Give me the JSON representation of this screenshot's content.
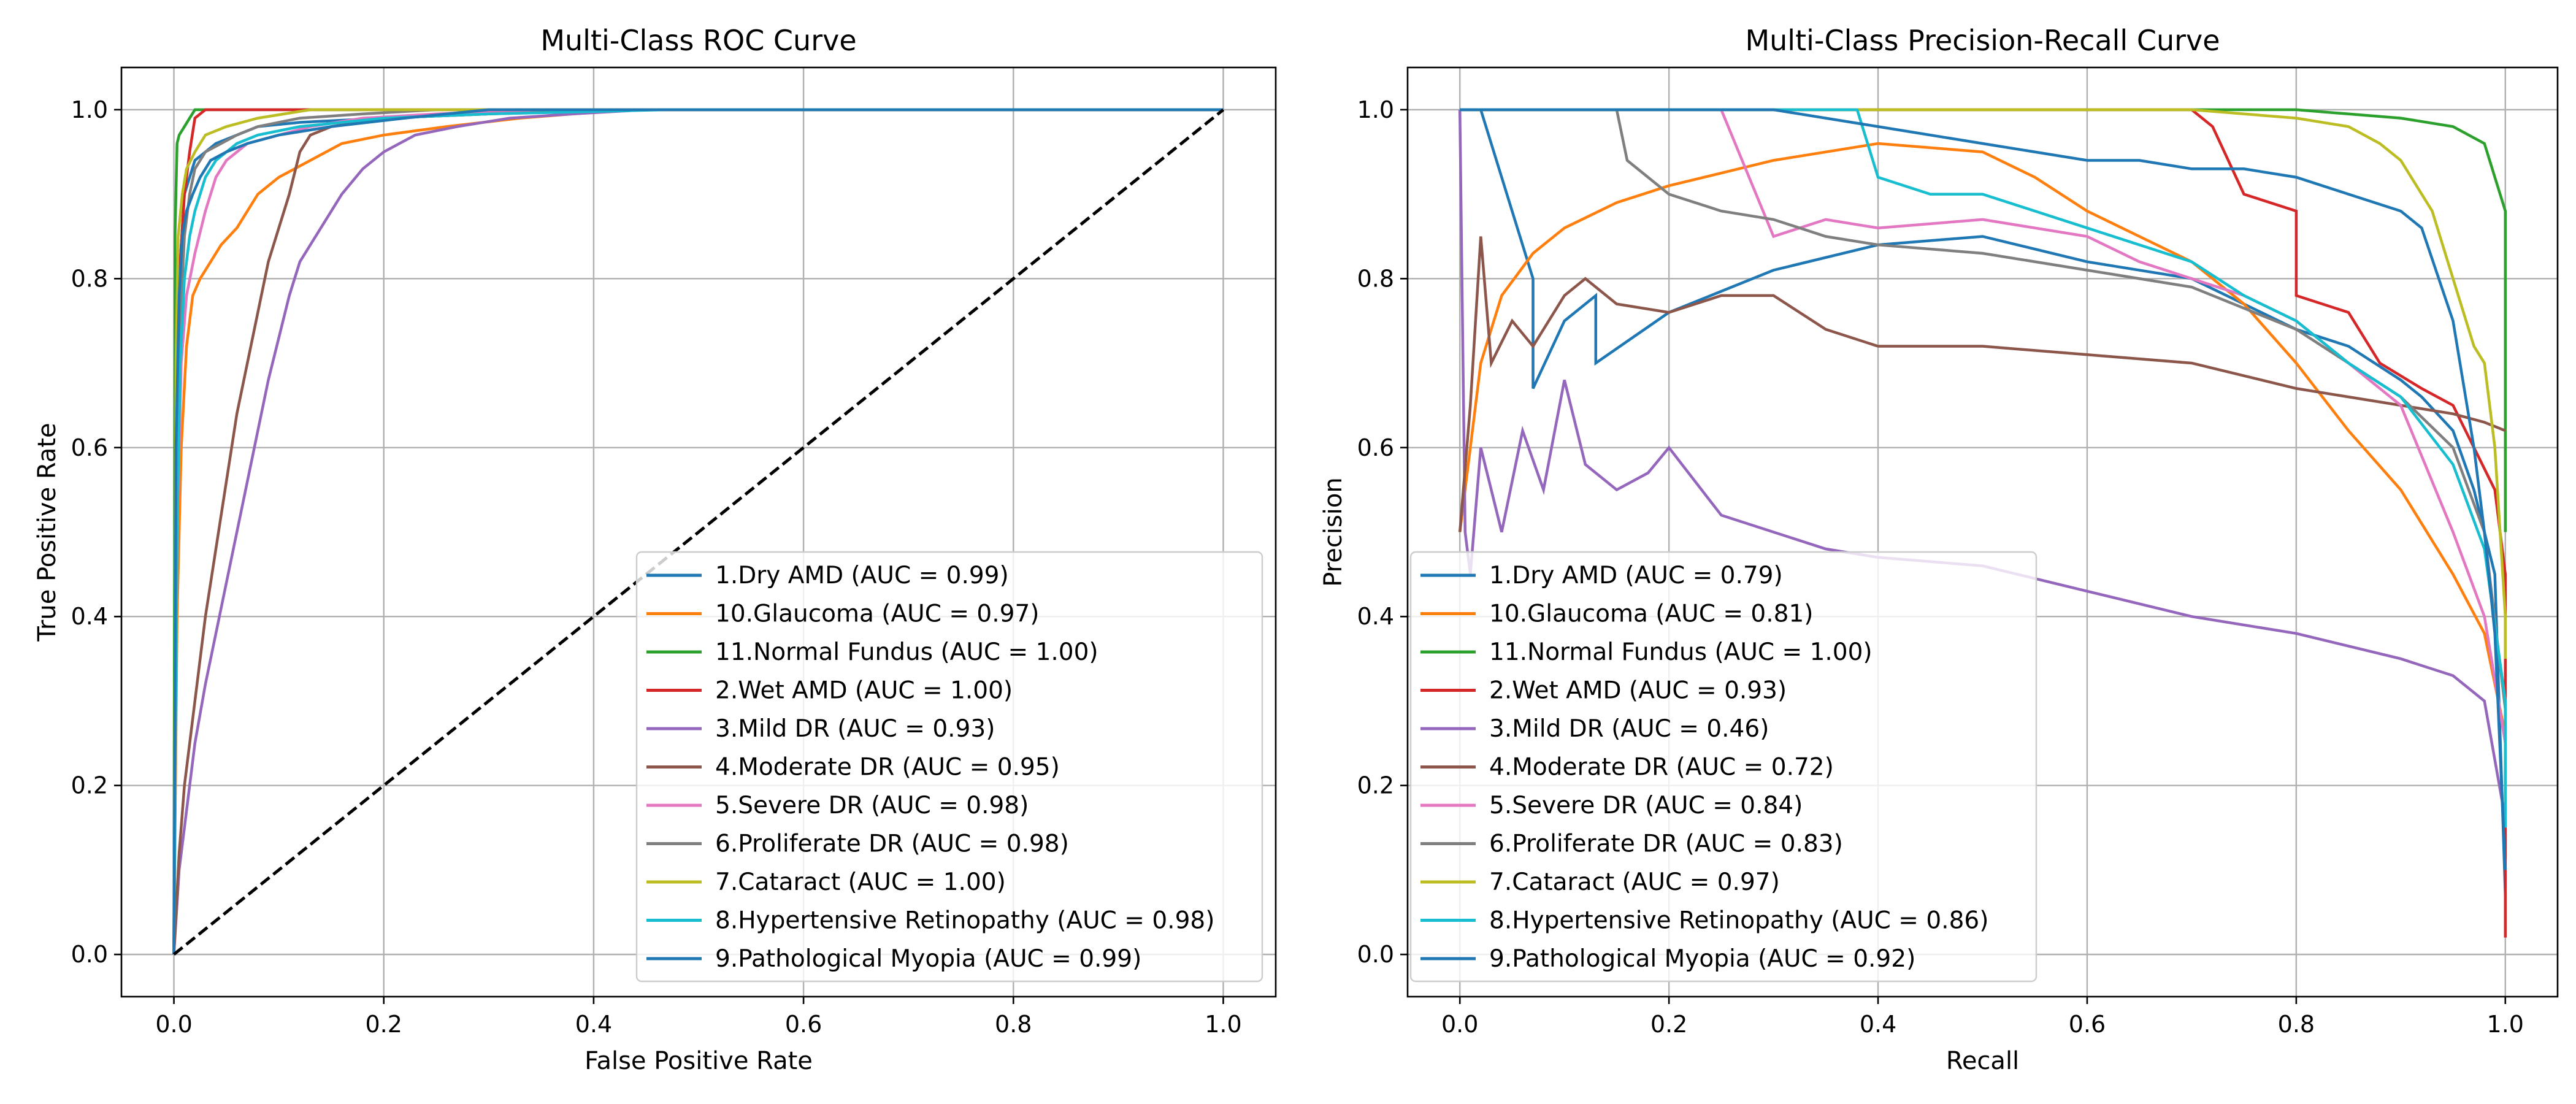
{
  "chart_data": [
    {
      "type": "line",
      "title": "Multi-Class ROC Curve",
      "xlabel": "False Positive Rate",
      "ylabel": "True Positive Rate",
      "xlim": [
        -0.05,
        1.05
      ],
      "ylim": [
        -0.05,
        1.05
      ],
      "xticks": [
        "0.0",
        "0.2",
        "0.4",
        "0.6",
        "0.8",
        "1.0"
      ],
      "yticks": [
        "0.0",
        "0.2",
        "0.4",
        "0.6",
        "0.8",
        "1.0"
      ],
      "grid": true,
      "legend_position": "lower-right",
      "series": [
        {
          "name": "1.Dry AMD (AUC = 0.99)",
          "color": "#1f77b4",
          "x": [
            0,
            0.002,
            0.005,
            0.01,
            0.015,
            0.02,
            0.03,
            0.04,
            0.06,
            0.08,
            0.12,
            0.2,
            0.3,
            0.4,
            1.0
          ],
          "y": [
            0,
            0.5,
            0.8,
            0.9,
            0.92,
            0.94,
            0.95,
            0.96,
            0.97,
            0.98,
            0.985,
            0.99,
            0.995,
            1.0,
            1.0
          ]
        },
        {
          "name": "10.Glaucoma (AUC = 0.97)",
          "color": "#ff7f0e",
          "x": [
            0,
            0.003,
            0.007,
            0.012,
            0.018,
            0.025,
            0.035,
            0.045,
            0.06,
            0.08,
            0.1,
            0.13,
            0.16,
            0.2,
            0.26,
            0.33,
            0.43,
            1.0
          ],
          "y": [
            0,
            0.4,
            0.6,
            0.72,
            0.78,
            0.8,
            0.82,
            0.84,
            0.86,
            0.9,
            0.92,
            0.94,
            0.96,
            0.97,
            0.98,
            0.99,
            1.0,
            1.0
          ]
        },
        {
          "name": "11.Normal Fundus (AUC = 1.00)",
          "color": "#2ca02c",
          "x": [
            0,
            0.001,
            0.003,
            0.005,
            0.01,
            0.015,
            0.02,
            1.0
          ],
          "y": [
            0,
            0.85,
            0.96,
            0.97,
            0.98,
            0.99,
            1.0,
            1.0
          ]
        },
        {
          "name": "2.Wet AMD (AUC = 1.00)",
          "color": "#d62728",
          "x": [
            0,
            0.002,
            0.005,
            0.01,
            0.015,
            0.02,
            0.03,
            1.0
          ],
          "y": [
            0,
            0.6,
            0.8,
            0.9,
            0.95,
            0.99,
            1.0,
            1.0
          ]
        },
        {
          "name": "3.Mild DR (AUC = 0.93)",
          "color": "#9467bd",
          "x": [
            0,
            0.005,
            0.01,
            0.02,
            0.03,
            0.04,
            0.05,
            0.06,
            0.07,
            0.08,
            0.09,
            0.1,
            0.11,
            0.12,
            0.14,
            0.16,
            0.18,
            0.2,
            0.23,
            0.27,
            0.32,
            0.38,
            0.45,
            1.0
          ],
          "y": [
            0,
            0.1,
            0.15,
            0.25,
            0.32,
            0.38,
            0.44,
            0.5,
            0.56,
            0.62,
            0.68,
            0.73,
            0.78,
            0.82,
            0.86,
            0.9,
            0.93,
            0.95,
            0.97,
            0.98,
            0.99,
            0.995,
            1.0,
            1.0
          ]
        },
        {
          "name": "4.Moderate DR (AUC = 0.95)",
          "color": "#8c564b",
          "x": [
            0,
            0.005,
            0.01,
            0.02,
            0.03,
            0.04,
            0.05,
            0.06,
            0.07,
            0.08,
            0.09,
            0.1,
            0.11,
            0.12,
            0.13,
            0.15,
            0.2,
            0.3,
            0.45,
            1.0
          ],
          "y": [
            0,
            0.12,
            0.2,
            0.3,
            0.4,
            0.48,
            0.56,
            0.64,
            0.7,
            0.76,
            0.82,
            0.86,
            0.9,
            0.95,
            0.97,
            0.98,
            0.99,
            0.995,
            1.0,
            1.0
          ]
        },
        {
          "name": "5.Severe DR (AUC = 0.98)",
          "color": "#e377c2",
          "x": [
            0,
            0.003,
            0.007,
            0.012,
            0.02,
            0.03,
            0.04,
            0.05,
            0.07,
            0.1,
            0.13,
            0.18,
            0.25,
            0.35,
            1.0
          ],
          "y": [
            0,
            0.5,
            0.7,
            0.78,
            0.83,
            0.88,
            0.92,
            0.94,
            0.96,
            0.97,
            0.98,
            0.99,
            0.995,
            1.0,
            1.0
          ]
        },
        {
          "name": "6.Proliferate DR (AUC = 0.98)",
          "color": "#7f7f7f",
          "x": [
            0,
            0.003,
            0.006,
            0.01,
            0.015,
            0.02,
            0.03,
            0.045,
            0.06,
            0.08,
            0.12,
            0.18,
            0.25,
            1.0
          ],
          "y": [
            0,
            0.55,
            0.75,
            0.85,
            0.9,
            0.93,
            0.95,
            0.96,
            0.97,
            0.98,
            0.99,
            0.995,
            1.0,
            1.0
          ]
        },
        {
          "name": "7.Cataract (AUC = 1.00)",
          "color": "#bcbd22",
          "x": [
            0,
            0.002,
            0.004,
            0.008,
            0.012,
            0.02,
            0.03,
            0.05,
            0.08,
            0.13,
            1.0
          ],
          "y": [
            0,
            0.7,
            0.85,
            0.9,
            0.93,
            0.95,
            0.97,
            0.98,
            0.99,
            1.0,
            1.0
          ]
        },
        {
          "name": "8.Hypertensive Retinopathy (AUC = 0.98)",
          "color": "#17becf",
          "x": [
            0,
            0.003,
            0.006,
            0.01,
            0.015,
            0.02,
            0.03,
            0.04,
            0.06,
            0.08,
            0.12,
            0.2,
            0.3,
            0.47,
            1.0
          ],
          "y": [
            0,
            0.5,
            0.7,
            0.8,
            0.85,
            0.88,
            0.92,
            0.94,
            0.96,
            0.97,
            0.98,
            0.99,
            0.995,
            1.0,
            1.0
          ]
        },
        {
          "name": "9.Pathological Myopia (AUC = 0.99)",
          "color": "#1f77b4",
          "x": [
            0,
            0.002,
            0.005,
            0.008,
            0.012,
            0.018,
            0.025,
            0.035,
            0.05,
            0.07,
            0.1,
            0.15,
            0.22,
            0.3,
            1.0
          ],
          "y": [
            0,
            0.6,
            0.78,
            0.85,
            0.88,
            0.9,
            0.92,
            0.94,
            0.95,
            0.96,
            0.97,
            0.98,
            0.99,
            1.0,
            1.0
          ]
        },
        {
          "name": "",
          "color": "#000000",
          "dashed": true,
          "x": [
            0,
            1
          ],
          "y": [
            0,
            1
          ]
        }
      ]
    },
    {
      "type": "line",
      "title": "Multi-Class Precision-Recall Curve",
      "xlabel": "Recall",
      "ylabel": "Precision",
      "xlim": [
        -0.05,
        1.05
      ],
      "ylim": [
        -0.05,
        1.05
      ],
      "xticks": [
        "0.0",
        "0.2",
        "0.4",
        "0.6",
        "0.8",
        "1.0"
      ],
      "yticks": [
        "0.0",
        "0.2",
        "0.4",
        "0.6",
        "0.8",
        "1.0"
      ],
      "grid": true,
      "legend_position": "lower-left",
      "series": [
        {
          "name": "1.Dry AMD (AUC = 0.79)",
          "color": "#1f77b4",
          "x": [
            0,
            0.02,
            0.07,
            0.07,
            0.1,
            0.13,
            0.13,
            0.2,
            0.3,
            0.4,
            0.5,
            0.6,
            0.7,
            0.8,
            0.85,
            0.9,
            0.92,
            0.95,
            0.97,
            0.99,
            1.0
          ],
          "y": [
            1.0,
            1.0,
            0.8,
            0.67,
            0.75,
            0.78,
            0.7,
            0.76,
            0.81,
            0.84,
            0.85,
            0.82,
            0.8,
            0.74,
            0.72,
            0.68,
            0.66,
            0.62,
            0.55,
            0.45,
            0.07
          ]
        },
        {
          "name": "10.Glaucoma (AUC = 0.81)",
          "color": "#ff7f0e",
          "x": [
            0,
            0.01,
            0.02,
            0.04,
            0.07,
            0.1,
            0.15,
            0.2,
            0.3,
            0.4,
            0.5,
            0.55,
            0.6,
            0.65,
            0.7,
            0.75,
            0.8,
            0.85,
            0.9,
            0.95,
            0.98,
            1.0
          ],
          "y": [
            0.5,
            0.6,
            0.7,
            0.78,
            0.83,
            0.86,
            0.89,
            0.91,
            0.94,
            0.96,
            0.95,
            0.92,
            0.88,
            0.85,
            0.82,
            0.77,
            0.7,
            0.62,
            0.55,
            0.45,
            0.38,
            0.26
          ]
        },
        {
          "name": "11.Normal Fundus (AUC = 1.00)",
          "color": "#2ca02c",
          "x": [
            0,
            0.2,
            0.4,
            0.6,
            0.8,
            0.85,
            0.9,
            0.95,
            0.98,
            0.99,
            1.0,
            1.0
          ],
          "y": [
            1.0,
            1.0,
            1.0,
            1.0,
            1.0,
            0.995,
            0.99,
            0.98,
            0.96,
            0.92,
            0.88,
            0.5
          ]
        },
        {
          "name": "2.Wet AMD (AUC = 0.93)",
          "color": "#d62728",
          "x": [
            0,
            0.3,
            0.5,
            0.7,
            0.72,
            0.75,
            0.8,
            0.8,
            0.85,
            0.88,
            0.92,
            0.95,
            0.97,
            0.99,
            1.0,
            1.0
          ],
          "y": [
            1.0,
            1.0,
            1.0,
            1.0,
            0.98,
            0.9,
            0.88,
            0.78,
            0.76,
            0.7,
            0.67,
            0.65,
            0.6,
            0.55,
            0.45,
            0.02
          ]
        },
        {
          "name": "3.Mild DR (AUC = 0.46)",
          "color": "#9467bd",
          "x": [
            0,
            0.005,
            0.01,
            0.02,
            0.03,
            0.04,
            0.06,
            0.08,
            0.1,
            0.12,
            0.15,
            0.18,
            0.2,
            0.25,
            0.3,
            0.35,
            0.4,
            0.5,
            0.6,
            0.7,
            0.8,
            0.9,
            0.95,
            0.98,
            1.0
          ],
          "y": [
            1.0,
            0.5,
            0.45,
            0.6,
            0.55,
            0.5,
            0.62,
            0.55,
            0.68,
            0.58,
            0.55,
            0.57,
            0.6,
            0.52,
            0.5,
            0.48,
            0.47,
            0.46,
            0.43,
            0.4,
            0.38,
            0.35,
            0.33,
            0.3,
            0.16
          ]
        },
        {
          "name": "4.Moderate DR (AUC = 0.72)",
          "color": "#8c564b",
          "x": [
            0,
            0.01,
            0.02,
            0.03,
            0.05,
            0.07,
            0.1,
            0.12,
            0.15,
            0.2,
            0.25,
            0.3,
            0.35,
            0.4,
            0.5,
            0.6,
            0.7,
            0.8,
            0.9,
            0.95,
            0.98,
            1.0
          ],
          "y": [
            0.5,
            0.65,
            0.85,
            0.7,
            0.75,
            0.72,
            0.78,
            0.8,
            0.77,
            0.76,
            0.78,
            0.78,
            0.74,
            0.72,
            0.72,
            0.71,
            0.7,
            0.67,
            0.65,
            0.64,
            0.63,
            0.62
          ]
        },
        {
          "name": "5.Severe DR (AUC = 0.84)",
          "color": "#e377c2",
          "x": [
            0,
            0.25,
            0.3,
            0.35,
            0.4,
            0.5,
            0.6,
            0.65,
            0.7,
            0.75,
            0.8,
            0.85,
            0.9,
            0.95,
            0.98,
            1.0
          ],
          "y": [
            1.0,
            1.0,
            0.85,
            0.87,
            0.86,
            0.87,
            0.85,
            0.82,
            0.8,
            0.78,
            0.75,
            0.7,
            0.65,
            0.5,
            0.4,
            0.25
          ]
        },
        {
          "name": "6.Proliferate DR (AUC = 0.83)",
          "color": "#7f7f7f",
          "x": [
            0,
            0.15,
            0.16,
            0.2,
            0.25,
            0.3,
            0.35,
            0.4,
            0.5,
            0.6,
            0.7,
            0.8,
            0.85,
            0.9,
            0.95,
            0.98,
            1.0
          ],
          "y": [
            1.0,
            1.0,
            0.94,
            0.9,
            0.88,
            0.87,
            0.85,
            0.84,
            0.83,
            0.81,
            0.79,
            0.74,
            0.7,
            0.66,
            0.6,
            0.5,
            0.29
          ]
        },
        {
          "name": "7.Cataract (AUC = 0.97)",
          "color": "#bcbd22",
          "x": [
            0,
            0.3,
            0.5,
            0.7,
            0.8,
            0.85,
            0.88,
            0.9,
            0.93,
            0.95,
            0.97,
            0.98,
            0.99,
            1.0,
            1.0
          ],
          "y": [
            1.0,
            1.0,
            1.0,
            1.0,
            0.99,
            0.98,
            0.96,
            0.94,
            0.88,
            0.8,
            0.72,
            0.7,
            0.6,
            0.4,
            0.35
          ]
        },
        {
          "name": "8.Hypertensive Retinopathy (AUC = 0.86)",
          "color": "#17becf",
          "x": [
            0,
            0.3,
            0.38,
            0.4,
            0.45,
            0.5,
            0.55,
            0.6,
            0.7,
            0.75,
            0.8,
            0.85,
            0.9,
            0.95,
            0.98,
            1.0,
            1.0
          ],
          "y": [
            1.0,
            1.0,
            1.0,
            0.92,
            0.9,
            0.9,
            0.88,
            0.86,
            0.82,
            0.78,
            0.75,
            0.7,
            0.66,
            0.58,
            0.48,
            0.3,
            0.15
          ]
        },
        {
          "name": "9.Pathological Myopia (AUC = 0.92)",
          "color": "#1f77b4",
          "x": [
            0,
            0.3,
            0.4,
            0.5,
            0.6,
            0.65,
            0.7,
            0.75,
            0.8,
            0.85,
            0.9,
            0.92,
            0.95,
            0.97,
            0.98,
            0.99,
            1.0
          ],
          "y": [
            1.0,
            1.0,
            0.98,
            0.96,
            0.94,
            0.94,
            0.93,
            0.93,
            0.92,
            0.9,
            0.88,
            0.86,
            0.75,
            0.6,
            0.5,
            0.38,
            0.1
          ]
        }
      ]
    }
  ]
}
